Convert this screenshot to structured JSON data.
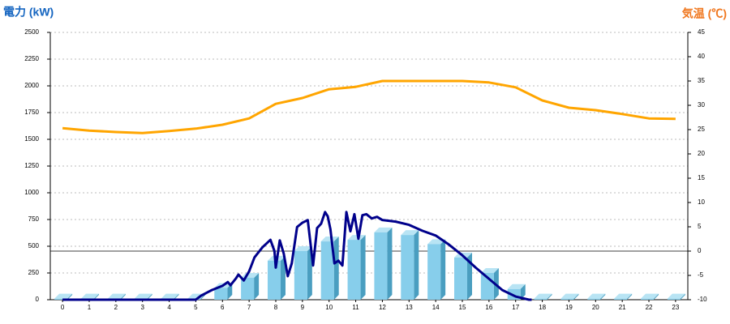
{
  "chart_data": {
    "type": "bar",
    "ylabel": "電力 (kW)",
    "y2label": "気温 (℃)",
    "categories": [
      "0",
      "1",
      "2",
      "3",
      "4",
      "5",
      "6",
      "7",
      "8",
      "9",
      "10",
      "11",
      "12",
      "13",
      "14",
      "15",
      "16",
      "17",
      "18",
      "19",
      "20",
      "21",
      "22",
      "23"
    ],
    "xlim": [
      -0.46,
      23.46
    ],
    "ylim": [
      0,
      2500
    ],
    "yticks": [
      0,
      250,
      500,
      750,
      1000,
      1250,
      1500,
      1750,
      2000,
      2250,
      2500
    ],
    "y2lim": [
      -10,
      45
    ],
    "y2ticks": [
      -10,
      -5,
      0,
      5,
      10,
      15,
      20,
      25,
      30,
      35,
      40,
      45
    ],
    "grid": true,
    "ref_line_y2": 0,
    "series": [
      {
        "type": "bar",
        "color": "#87ceeb",
        "values": [
          10,
          10,
          10,
          10,
          10,
          10,
          110,
          205,
          365,
          455,
          545,
          560,
          630,
          605,
          520,
          395,
          250,
          100,
          10,
          10,
          10,
          10,
          10,
          10
        ]
      },
      {
        "type": "line",
        "color": "#00008b",
        "x": [
          0,
          5,
          5.2,
          5.6,
          6.0,
          6.2,
          6.3,
          6.5,
          6.6,
          6.8,
          7.0,
          7.2,
          7.5,
          7.8,
          7.95,
          8.0,
          8.15,
          8.3,
          8.45,
          8.6,
          8.8,
          9.0,
          9.2,
          9.4,
          9.55,
          9.7,
          9.85,
          9.95,
          10.05,
          10.2,
          10.35,
          10.5,
          10.65,
          10.8,
          10.95,
          11.1,
          11.25,
          11.4,
          11.6,
          11.8,
          12.0,
          12.5,
          13.0,
          13.5,
          14.0,
          14.5,
          15.0,
          15.5,
          16.0,
          16.5,
          17.0,
          17.5,
          17.6
        ],
        "values": [
          0,
          0,
          38,
          90,
          130,
          165,
          135,
          197,
          235,
          180,
          265,
          395,
          490,
          560,
          455,
          300,
          555,
          430,
          220,
          340,
          680,
          720,
          745,
          320,
          670,
          710,
          820,
          780,
          660,
          340,
          365,
          320,
          820,
          640,
          800,
          570,
          790,
          800,
          760,
          775,
          745,
          730,
          700,
          645,
          600,
          515,
          415,
          300,
          195,
          90,
          30,
          0,
          0
        ]
      },
      {
        "type": "line",
        "axis": "y2",
        "color": "#ffa500",
        "values": [
          25.3,
          24.8,
          24.5,
          24.3,
          24.7,
          25.2,
          26,
          27.3,
          30.3,
          31.5,
          33.3,
          33.8,
          35,
          35,
          35,
          35,
          34.7,
          33.7,
          31,
          29.5,
          29,
          28.2,
          27.3,
          27.2
        ]
      }
    ]
  }
}
